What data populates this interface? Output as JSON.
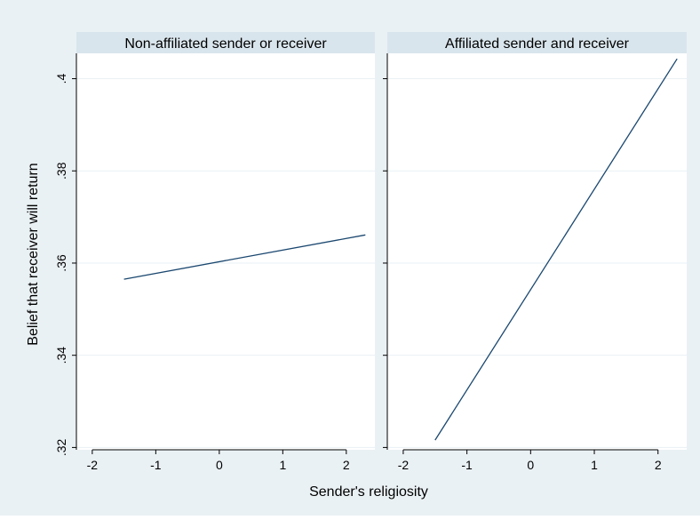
{
  "colors": {
    "outer_background": "#eaf1f4",
    "plot_background": "#ffffff",
    "strip_background": "#d9e5ec",
    "gridline": "#eaf1f4",
    "series_line": "#1a476f",
    "axis": "#000000"
  },
  "chart_data": {
    "type": "line",
    "xlabel": "Sender's religiosity",
    "ylabel": "Belief that receiver will return",
    "xlim": [
      -2.25,
      2.45
    ],
    "ylim": [
      0.3195,
      0.4055
    ],
    "x_ticks": [
      -2,
      -1,
      0,
      1,
      2
    ],
    "x_tick_labels": [
      "-2",
      "-1",
      "0",
      "1",
      "2"
    ],
    "y_ticks": [
      0.32,
      0.34,
      0.36,
      0.38,
      0.4
    ],
    "y_tick_labels": [
      ".32",
      ".34",
      ".36",
      ".38",
      ".4"
    ],
    "grid": true,
    "legend": "none",
    "panels": [
      {
        "title": "Non-affiliated sender or receiver",
        "series": [
          {
            "x": [
              -1.5,
              2.3
            ],
            "y": [
              0.3565,
              0.3661
            ]
          }
        ]
      },
      {
        "title": "Affiliated sender and receiver",
        "series": [
          {
            "x": [
              -1.5,
              2.3
            ],
            "y": [
              0.3216,
              0.4043
            ]
          }
        ]
      }
    ]
  }
}
